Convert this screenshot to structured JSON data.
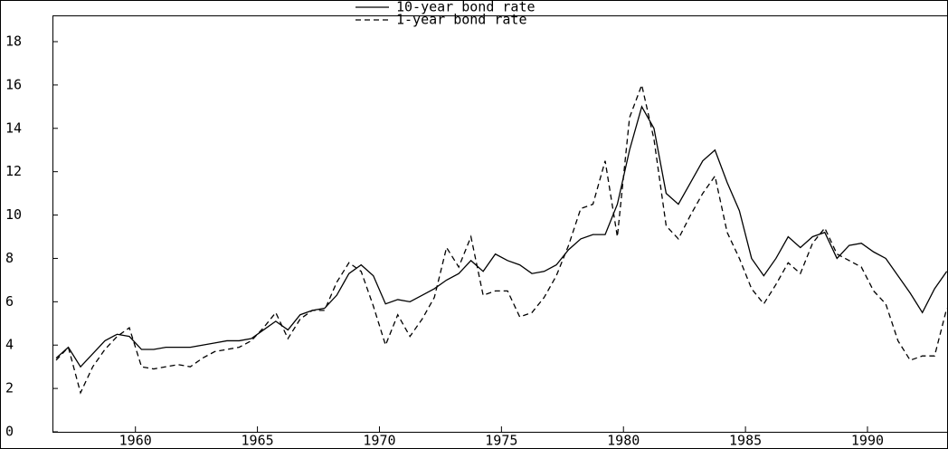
{
  "chart_data": {
    "type": "line",
    "x": [
      1956.75,
      1957.25,
      1957.75,
      1958.25,
      1958.75,
      1959.25,
      1959.75,
      1960.25,
      1960.75,
      1961.25,
      1961.75,
      1962.25,
      1962.75,
      1963.25,
      1963.75,
      1964.25,
      1964.75,
      1965.25,
      1965.75,
      1966.25,
      1966.75,
      1967.25,
      1967.75,
      1968.25,
      1968.75,
      1969.25,
      1969.75,
      1970.25,
      1970.75,
      1971.25,
      1971.75,
      1972.25,
      1972.75,
      1973.25,
      1973.75,
      1974.25,
      1974.75,
      1975.25,
      1975.75,
      1976.25,
      1976.75,
      1977.25,
      1977.75,
      1978.25,
      1978.75,
      1979.25,
      1979.75,
      1980.25,
      1980.75,
      1981.25,
      1981.75,
      1982.25,
      1982.75,
      1983.25,
      1983.75,
      1984.25,
      1984.75,
      1985.25,
      1985.75,
      1986.25,
      1986.75,
      1987.25,
      1987.75,
      1988.25,
      1988.75,
      1989.25,
      1989.75,
      1990.25,
      1990.75,
      1991.25,
      1991.75,
      1992.25,
      1992.75,
      1993.25
    ],
    "series": [
      {
        "name": "10-year bond rate",
        "color": "#000000",
        "dash": "solid",
        "values": [
          3.4,
          3.9,
          3.0,
          3.6,
          4.2,
          4.5,
          4.4,
          3.8,
          3.8,
          3.9,
          3.9,
          3.9,
          4.0,
          4.1,
          4.2,
          4.2,
          4.3,
          4.7,
          5.1,
          4.7,
          5.4,
          5.6,
          5.7,
          6.3,
          7.3,
          7.7,
          7.2,
          5.9,
          6.1,
          6.0,
          6.3,
          6.6,
          7.0,
          7.3,
          7.9,
          7.4,
          8.2,
          7.9,
          7.7,
          7.3,
          7.4,
          7.7,
          8.4,
          8.9,
          9.1,
          9.1,
          10.5,
          13.0,
          15.0,
          14.0,
          11.0,
          10.5,
          11.5,
          12.5,
          13.0,
          11.5,
          10.2,
          8.0,
          7.2,
          8.0,
          9.0,
          8.5,
          9.0,
          9.2,
          8.0,
          8.6,
          8.7,
          8.3,
          8.0,
          7.2,
          6.4,
          5.5,
          6.6,
          7.4
        ]
      },
      {
        "name": "1-year bond rate",
        "color": "#000000",
        "dash": "dashed",
        "values": [
          3.3,
          3.9,
          1.8,
          3.0,
          3.8,
          4.4,
          4.8,
          3.0,
          2.9,
          3.0,
          3.1,
          3.0,
          3.4,
          3.7,
          3.8,
          3.9,
          4.2,
          4.8,
          5.5,
          4.3,
          5.2,
          5.6,
          5.6,
          6.9,
          7.8,
          7.4,
          5.8,
          4.0,
          5.4,
          4.4,
          5.2,
          6.2,
          8.5,
          7.6,
          9.0,
          6.3,
          6.5,
          6.5,
          5.3,
          5.5,
          6.2,
          7.2,
          8.6,
          10.3,
          10.5,
          12.5,
          9.0,
          14.5,
          16.0,
          13.5,
          9.5,
          8.9,
          10.0,
          11.0,
          11.8,
          9.2,
          8.0,
          6.6,
          5.9,
          6.8,
          7.8,
          7.3,
          8.7,
          9.4,
          8.2,
          7.9,
          7.6,
          6.5,
          5.9,
          4.2,
          3.3,
          3.5,
          3.5,
          5.7
        ]
      }
    ],
    "xlim": [
      1956.6,
      1993.3
    ],
    "xticks": [
      1960,
      1965,
      1970,
      1975,
      1980,
      1985,
      1990
    ],
    "ylim": [
      0,
      18
    ],
    "yticks": [
      0,
      2,
      4,
      6,
      8,
      10,
      12,
      14,
      16,
      18
    ],
    "grid": false,
    "legend": "top"
  }
}
